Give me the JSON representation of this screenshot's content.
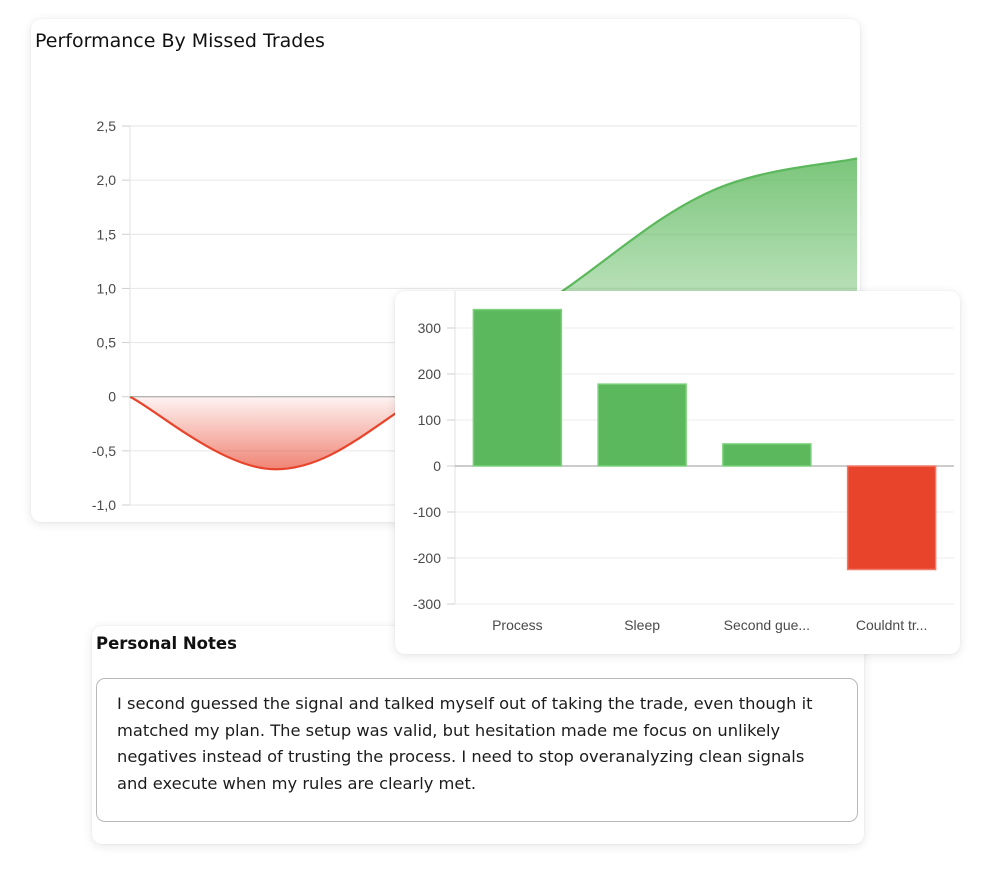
{
  "line_card": {
    "title": "Performance By Missed Trades"
  },
  "notes": {
    "title": "Personal Notes",
    "text": "I second guessed the signal and talked myself out of taking the trade, even though it matched my plan. The setup was valid, but hesitation made me focus on unlikely negatives instead of trusting the process. I need to stop overanalyzing clean signals and execute when my rules are clearly met."
  },
  "chart_data": [
    {
      "type": "area",
      "title": "Performance By Missed Trades",
      "x": [
        0,
        1,
        2,
        3,
        4,
        5
      ],
      "values": [
        0,
        -0.67,
        0.0,
        1.0,
        1.9,
        2.2
      ],
      "ylim": [
        -1.0,
        2.5
      ],
      "yticks": [
        "2,5",
        "2,0",
        "1,5",
        "1,0",
        "0,5",
        "0",
        "-0,5",
        "-1,0"
      ],
      "ytick_values": [
        2.5,
        2.0,
        1.5,
        1.0,
        0.5,
        0,
        -0.5,
        -1.0
      ],
      "grid": true,
      "colors": {
        "positive": "#5cb85c",
        "negative": "#e8442c"
      }
    },
    {
      "type": "bar",
      "categories": [
        "Process",
        "Sleep",
        "Second gue...",
        "Couldnt tr..."
      ],
      "values": [
        340,
        178,
        48,
        -225
      ],
      "ylim": [
        -300,
        300
      ],
      "yticks": [
        "300",
        "200",
        "100",
        "0",
        "-100",
        "-200",
        "-300"
      ],
      "ytick_values": [
        300,
        200,
        100,
        0,
        -100,
        -200,
        -300
      ],
      "grid": true,
      "colors": {
        "positive": "#5cb85c",
        "negative": "#e8442c"
      }
    }
  ]
}
